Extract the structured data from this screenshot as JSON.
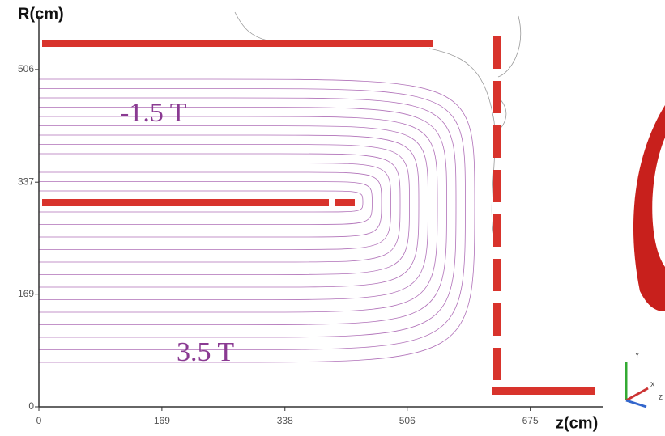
{
  "chart_data": {
    "type": "contour",
    "ylabel": "R(cm)",
    "xlabel": "z(cm)",
    "xlim": [
      0,
      770
    ],
    "ylim": [
      0,
      592
    ],
    "xticks": [
      0,
      169,
      338,
      506,
      675
    ],
    "yticks": [
      0,
      169,
      337,
      506
    ],
    "annotations": [
      "-1.5 T",
      "3.5 T"
    ],
    "gizmo_labels": [
      "Y",
      "X",
      "Z"
    ],
    "line_color": "#b070b8",
    "coil_color": "#d8332c"
  }
}
